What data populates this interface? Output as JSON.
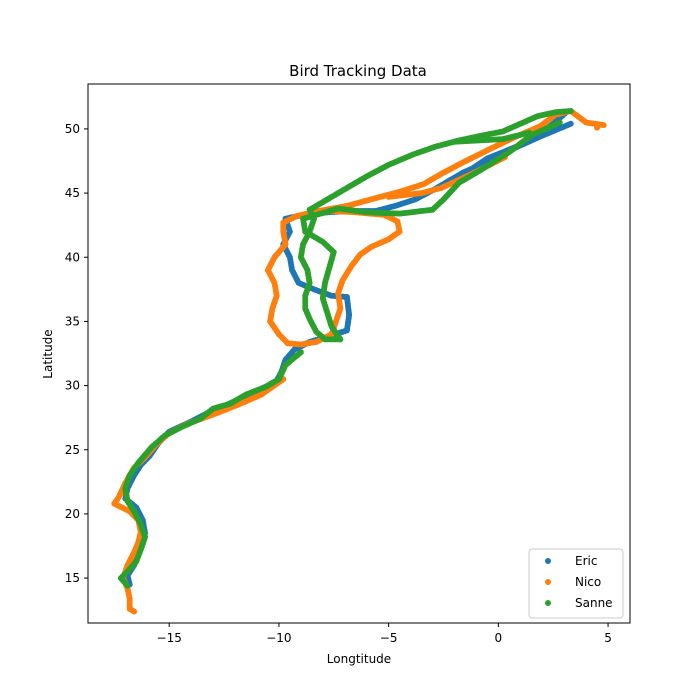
{
  "chart_data": {
    "type": "scatter",
    "title": "Bird Tracking Data",
    "xlabel": "Longtitude",
    "ylabel": "Latitude",
    "xlim": [
      -18.7,
      6.0
    ],
    "ylim": [
      11.5,
      53.5
    ],
    "xticks": [
      -15,
      -10,
      -5,
      0,
      5
    ],
    "xtick_labels": [
      "−15",
      "−10",
      "−5",
      "0",
      "5"
    ],
    "yticks": [
      15,
      20,
      25,
      30,
      35,
      40,
      45,
      50
    ],
    "ytick_labels": [
      "15",
      "20",
      "25",
      "30",
      "35",
      "40",
      "45",
      "50"
    ],
    "grid": false,
    "legend_position": "lower-right",
    "series": [
      {
        "name": "Eric",
        "color": "#1f77b4",
        "points": [
          [
            3.1,
            51.3
          ],
          [
            2.5,
            50.4
          ],
          [
            1.8,
            49.5
          ],
          [
            0.8,
            48.6
          ],
          [
            -0.5,
            47.7
          ],
          [
            -1.2,
            46.9
          ],
          [
            -2.2,
            46.0
          ],
          [
            -2.9,
            45.3
          ],
          [
            -3.8,
            44.5
          ],
          [
            -4.7,
            44.0
          ],
          [
            -5.6,
            43.6
          ],
          [
            -6.8,
            43.6
          ],
          [
            -7.8,
            43.5
          ],
          [
            -8.9,
            43.3
          ],
          [
            -9.7,
            43.0
          ],
          [
            -9.5,
            42.0
          ],
          [
            -9.8,
            41.0
          ],
          [
            -9.5,
            40.0
          ],
          [
            -9.4,
            39.0
          ],
          [
            -9.1,
            38.0
          ],
          [
            -8.4,
            37.5
          ],
          [
            -7.6,
            37.0
          ],
          [
            -6.9,
            36.9
          ],
          [
            -6.8,
            35.5
          ],
          [
            -6.9,
            34.3
          ],
          [
            -7.8,
            33.8
          ],
          [
            -8.6,
            33.4
          ],
          [
            -9.3,
            32.8
          ],
          [
            -9.7,
            32.0
          ],
          [
            -9.9,
            31.0
          ],
          [
            -10.1,
            30.4
          ],
          [
            -10.5,
            30.0
          ],
          [
            -11.5,
            29.2
          ],
          [
            -12.5,
            28.4
          ],
          [
            -13.2,
            27.9
          ],
          [
            -14.0,
            27.2
          ],
          [
            -15.0,
            26.4
          ],
          [
            -15.5,
            25.5
          ],
          [
            -15.9,
            24.5
          ],
          [
            -16.3,
            23.8
          ],
          [
            -16.6,
            23.0
          ],
          [
            -16.9,
            22.0
          ],
          [
            -17.0,
            21.2
          ],
          [
            -16.5,
            20.5
          ],
          [
            -16.2,
            19.5
          ],
          [
            -16.1,
            18.5
          ],
          [
            -16.2,
            17.7
          ],
          [
            -16.4,
            17.0
          ],
          [
            -16.6,
            16.0
          ],
          [
            -16.9,
            15.2
          ],
          [
            -16.8,
            14.5
          ],
          [
            -2.4,
            45.8
          ],
          [
            -1.6,
            46.6
          ],
          [
            -0.4,
            47.5
          ],
          [
            0.6,
            48.4
          ],
          [
            1.9,
            49.4
          ],
          [
            3.3,
            50.4
          ]
        ]
      },
      {
        "name": "Nico",
        "color": "#ff7f0e",
        "points": [
          [
            4.8,
            50.3
          ],
          [
            4.0,
            50.5
          ],
          [
            3.3,
            51.4
          ],
          [
            2.6,
            51.1
          ],
          [
            1.9,
            50.2
          ],
          [
            0.8,
            49.4
          ],
          [
            -0.3,
            48.5
          ],
          [
            -1.6,
            47.4
          ],
          [
            -2.6,
            46.5
          ],
          [
            -3.4,
            45.7
          ],
          [
            -4.5,
            45.1
          ],
          [
            -5.6,
            44.6
          ],
          [
            -6.9,
            44.0
          ],
          [
            -8.2,
            43.6
          ],
          [
            -9.2,
            43.2
          ],
          [
            -9.8,
            42.7
          ],
          [
            -9.8,
            42.0
          ],
          [
            -9.7,
            41.0
          ],
          [
            -10.2,
            40.0
          ],
          [
            -10.5,
            39.0
          ],
          [
            -10.2,
            38.0
          ],
          [
            -10.1,
            37.0
          ],
          [
            -10.3,
            36.0
          ],
          [
            -10.4,
            35.0
          ],
          [
            -10.0,
            34.0
          ],
          [
            -9.6,
            33.3
          ],
          [
            -9.0,
            33.2
          ],
          [
            -8.3,
            33.4
          ],
          [
            -7.6,
            34.0
          ],
          [
            -7.4,
            35.0
          ],
          [
            -7.2,
            36.0
          ],
          [
            -7.3,
            37.2
          ],
          [
            -7.1,
            38.2
          ],
          [
            -6.7,
            39.3
          ],
          [
            -6.3,
            40.2
          ],
          [
            -5.8,
            40.8
          ],
          [
            -5.0,
            41.4
          ],
          [
            -4.5,
            42.0
          ],
          [
            -4.6,
            42.8
          ],
          [
            -5.2,
            43.3
          ],
          [
            -6.5,
            43.5
          ],
          [
            -7.5,
            43.6
          ],
          [
            -8.6,
            43.5
          ],
          [
            -9.8,
            30.5
          ],
          [
            -10.8,
            29.3
          ],
          [
            -11.6,
            28.7
          ],
          [
            -12.6,
            28.0
          ],
          [
            -13.4,
            27.5
          ],
          [
            -14.2,
            27.0
          ],
          [
            -15.0,
            26.3
          ],
          [
            -15.6,
            25.4
          ],
          [
            -16.1,
            24.4
          ],
          [
            -16.6,
            23.6
          ],
          [
            -17.0,
            22.4
          ],
          [
            -17.3,
            21.3
          ],
          [
            -17.5,
            20.8
          ],
          [
            -16.8,
            20.2
          ],
          [
            -16.4,
            19.5
          ],
          [
            -16.3,
            18.6
          ],
          [
            -16.4,
            17.8
          ],
          [
            -16.6,
            17.0
          ],
          [
            -16.9,
            16.0
          ],
          [
            -17.1,
            15.0
          ],
          [
            -16.9,
            14.2
          ],
          [
            -16.8,
            13.4
          ],
          [
            -16.8,
            12.6
          ],
          [
            -16.6,
            12.4
          ],
          [
            -5.0,
            44.7
          ],
          [
            -3.5,
            45.0
          ],
          [
            -2.6,
            45.4
          ],
          [
            -1.2,
            46.5
          ],
          [
            0.3,
            47.8
          ],
          [
            4.5,
            50.1
          ]
        ]
      },
      {
        "name": "Sanne",
        "color": "#2ca02c",
        "points": [
          [
            3.3,
            51.4
          ],
          [
            2.6,
            51.3
          ],
          [
            1.8,
            51.0
          ],
          [
            1.0,
            50.4
          ],
          [
            0.2,
            49.8
          ],
          [
            -0.7,
            49.5
          ],
          [
            -1.8,
            49.1
          ],
          [
            -2.9,
            48.6
          ],
          [
            -3.9,
            48.0
          ],
          [
            -5.0,
            47.2
          ],
          [
            -6.0,
            46.3
          ],
          [
            -7.0,
            45.3
          ],
          [
            -8.0,
            44.3
          ],
          [
            -8.6,
            43.7
          ],
          [
            -8.4,
            43.0
          ],
          [
            -8.6,
            42.0
          ],
          [
            -8.9,
            41.0
          ],
          [
            -9.0,
            40.0
          ],
          [
            -8.7,
            39.0
          ],
          [
            -8.6,
            38.0
          ],
          [
            -8.8,
            37.0
          ],
          [
            -8.8,
            36.0
          ],
          [
            -8.6,
            35.2
          ],
          [
            -8.3,
            34.2
          ],
          [
            -7.9,
            33.6
          ],
          [
            -7.2,
            33.6
          ],
          [
            -7.6,
            34.6
          ],
          [
            -7.8,
            35.7
          ],
          [
            -8.0,
            36.8
          ],
          [
            -7.9,
            38.0
          ],
          [
            -7.7,
            39.2
          ],
          [
            -7.5,
            40.4
          ],
          [
            -8.0,
            41.2
          ],
          [
            -8.8,
            42.0
          ],
          [
            -8.9,
            43.0
          ],
          [
            -7.3,
            43.8
          ],
          [
            -6.0,
            43.5
          ],
          [
            -4.5,
            43.4
          ],
          [
            -3.0,
            43.7
          ],
          [
            -2.5,
            44.5
          ],
          [
            -1.8,
            45.8
          ],
          [
            -0.8,
            46.8
          ],
          [
            0.5,
            48.2
          ],
          [
            1.5,
            49.5
          ],
          [
            2.8,
            50.5
          ],
          [
            -9.0,
            32.6
          ],
          [
            -9.7,
            31.6
          ],
          [
            -10.0,
            30.5
          ],
          [
            -10.6,
            29.9
          ],
          [
            -11.5,
            29.3
          ],
          [
            -12.2,
            28.6
          ],
          [
            -13.0,
            28.2
          ],
          [
            -13.6,
            27.4
          ],
          [
            -14.4,
            26.8
          ],
          [
            -15.2,
            26.1
          ],
          [
            -15.8,
            25.2
          ],
          [
            -16.4,
            24.0
          ],
          [
            -16.8,
            23.0
          ],
          [
            -17.0,
            22.0
          ],
          [
            -16.9,
            21.0
          ],
          [
            -16.6,
            20.2
          ],
          [
            -16.3,
            19.2
          ],
          [
            -16.1,
            18.2
          ],
          [
            -16.3,
            17.2
          ],
          [
            -16.5,
            16.3
          ],
          [
            -16.9,
            15.5
          ],
          [
            -17.2,
            15.0
          ],
          [
            -16.9,
            14.4
          ],
          [
            -2.0,
            49.0
          ],
          [
            0.2,
            49.2
          ],
          [
            1.4,
            49.7
          ]
        ]
      }
    ]
  }
}
